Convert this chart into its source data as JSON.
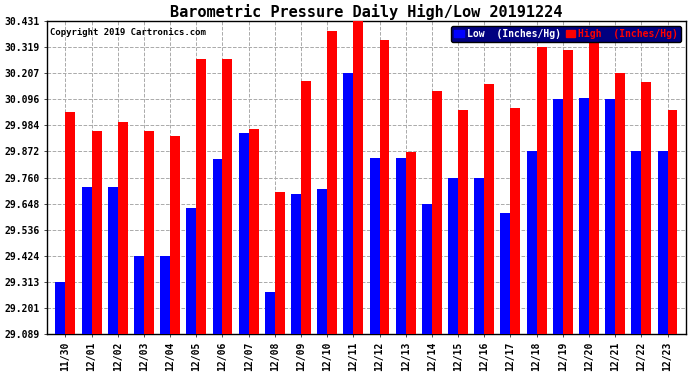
{
  "title": "Barometric Pressure Daily High/Low 20191224",
  "copyright": "Copyright 2019 Cartronics.com",
  "legend_low": "Low  (Inches/Hg)",
  "legend_high": "High  (Inches/Hg)",
  "dates": [
    "11/30",
    "12/01",
    "12/02",
    "12/03",
    "12/04",
    "12/05",
    "12/06",
    "12/07",
    "12/08",
    "12/09",
    "12/10",
    "12/11",
    "12/12",
    "12/13",
    "12/14",
    "12/15",
    "12/16",
    "12/17",
    "12/18",
    "12/19",
    "12/20",
    "12/21",
    "12/22",
    "12/23"
  ],
  "high": [
    30.04,
    29.96,
    30.0,
    29.96,
    29.94,
    30.27,
    30.27,
    29.97,
    29.7,
    30.175,
    30.39,
    30.431,
    30.35,
    29.87,
    30.13,
    30.05,
    30.16,
    30.06,
    30.32,
    30.31,
    30.36,
    30.207,
    30.17,
    30.05
  ],
  "low": [
    29.313,
    29.72,
    29.72,
    29.424,
    29.424,
    29.63,
    29.84,
    29.95,
    29.27,
    29.69,
    29.71,
    30.207,
    29.843,
    29.843,
    29.648,
    29.76,
    29.76,
    29.61,
    29.872,
    30.096,
    30.1,
    30.096,
    29.872,
    29.872
  ],
  "ybase": 29.089,
  "ylim_min": 29.089,
  "ylim_max": 30.431,
  "yticks": [
    29.089,
    29.201,
    29.313,
    29.424,
    29.536,
    29.648,
    29.76,
    29.872,
    29.984,
    30.096,
    30.207,
    30.319,
    30.431
  ],
  "color_low": "#0000FF",
  "color_high": "#FF0000",
  "bg_color": "#FFFFFF",
  "bar_width": 0.38,
  "title_fontsize": 11,
  "tick_fontsize": 7,
  "copyright_fontsize": 6.5
}
